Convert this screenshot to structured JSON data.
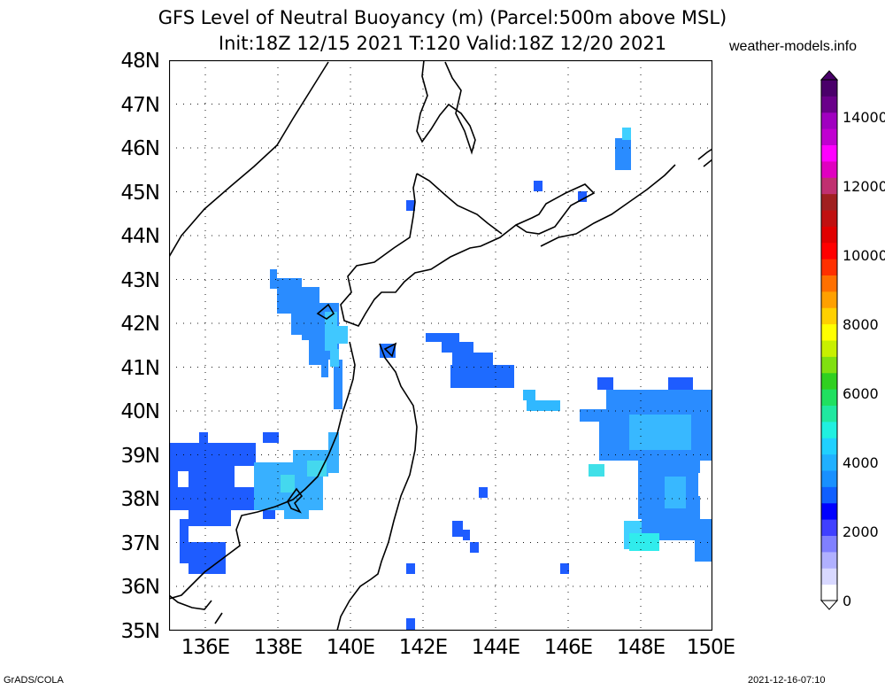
{
  "header": {
    "title_line1": "GFS Level of Neutral Buoyancy (m) (Parcel:500m above MSL)",
    "title_line2": "Init:18Z 12/15 2021 T:120 Valid:18Z 12/20 2021",
    "site": "weather-models.info"
  },
  "map": {
    "lat_labels": [
      "48N",
      "47N",
      "46N",
      "45N",
      "44N",
      "43N",
      "42N",
      "41N",
      "40N",
      "39N",
      "38N",
      "37N",
      "36N",
      "35N"
    ],
    "lon_labels": [
      "136E",
      "138E",
      "140E",
      "142E",
      "144E",
      "146E",
      "148E",
      "150E"
    ],
    "lat_range": [
      35,
      48
    ],
    "lon_range": [
      135,
      150
    ],
    "gridlines": true,
    "region": "Northern Japan / Sea of Japan / Hokkaido / Sakhalin"
  },
  "colorbar": {
    "labels": [
      "0",
      "2000",
      "4000",
      "6000",
      "8000",
      "10000",
      "12000",
      "14000"
    ],
    "range": [
      0,
      15000
    ],
    "colors": [
      "#ffffff",
      "#d8d8ff",
      "#b0b0ff",
      "#8080ff",
      "#4040ff",
      "#0000ff",
      "#0f5fff",
      "#1890ff",
      "#20b0ff",
      "#20d0ff",
      "#20f0e0",
      "#20e8a0",
      "#20e060",
      "#30d020",
      "#80e010",
      "#c8f000",
      "#ffff00",
      "#ffd000",
      "#ffa000",
      "#ff7000",
      "#ff3000",
      "#ff0000",
      "#e00000",
      "#c01010",
      "#a02020",
      "#c03070",
      "#e000c0",
      "#ff00ff",
      "#c000d0",
      "#a000c0",
      "#6a008a",
      "#4a006a"
    ]
  },
  "footer": {
    "left": "GrADS/COLA",
    "right": "2021-12-16-07:10"
  }
}
